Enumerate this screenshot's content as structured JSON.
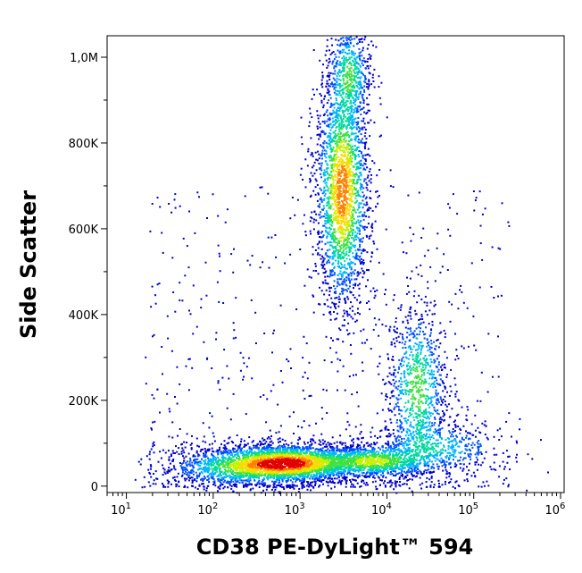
{
  "chart_data": {
    "type": "scatter",
    "subtype": "flow-cytometry-density-dot-plot",
    "title": "",
    "xlabel": "CD38 PE-DyLight™ 594",
    "ylabel": "Side Scatter",
    "x_scale": "log",
    "y_scale": "linear",
    "xlim": [
      6,
      1100000
    ],
    "ylim": [
      -15000,
      1050000
    ],
    "x_ticks": [
      {
        "value": 10,
        "base": "10",
        "exp": "1"
      },
      {
        "value": 100,
        "base": "10",
        "exp": "2"
      },
      {
        "value": 1000,
        "base": "10",
        "exp": "3"
      },
      {
        "value": 10000,
        "base": "10",
        "exp": "4"
      },
      {
        "value": 100000,
        "base": "10",
        "exp": "5"
      },
      {
        "value": 1000000,
        "base": "10",
        "exp": "6"
      }
    ],
    "y_ticks": [
      {
        "value": 0,
        "label": "0"
      },
      {
        "value": 200000,
        "label": "200K"
      },
      {
        "value": 400000,
        "label": "400K"
      },
      {
        "value": 600000,
        "label": "600K"
      },
      {
        "value": 800000,
        "label": "800K"
      },
      {
        "value": 1000000,
        "label": "1,0M"
      }
    ],
    "grid": false,
    "legend": "none",
    "color_scale": [
      "#0000c8",
      "#0050ff",
      "#00b4ff",
      "#00d8a0",
      "#40e040",
      "#c8f000",
      "#ffd800",
      "#ff8000",
      "#e00000"
    ],
    "populations": [
      {
        "x_center": 700,
        "y_center": 55000,
        "x_log_sd": 0.35,
        "y_sd": 18000,
        "peak_density": 1.0
      },
      {
        "x_center": 7000,
        "y_center": 60000,
        "x_log_sd": 0.28,
        "y_sd": 16000,
        "peak_density": 0.55
      },
      {
        "x_center": 180,
        "y_center": 45000,
        "x_log_sd": 0.35,
        "y_sd": 20000,
        "peak_density": 0.35
      },
      {
        "x_center": 3000,
        "y_center": 690000,
        "x_log_sd": 0.12,
        "y_sd": 110000,
        "peak_density": 0.85
      },
      {
        "x_center": 3600,
        "y_center": 960000,
        "x_log_sd": 0.1,
        "y_sd": 50000,
        "peak_density": 0.4
      },
      {
        "x_center": 22000,
        "y_center": 230000,
        "x_log_sd": 0.14,
        "y_sd": 80000,
        "peak_density": 0.45
      },
      {
        "x_center": 40000,
        "y_center": 90000,
        "x_log_sd": 0.3,
        "y_sd": 25000,
        "peak_density": 0.25
      }
    ]
  }
}
